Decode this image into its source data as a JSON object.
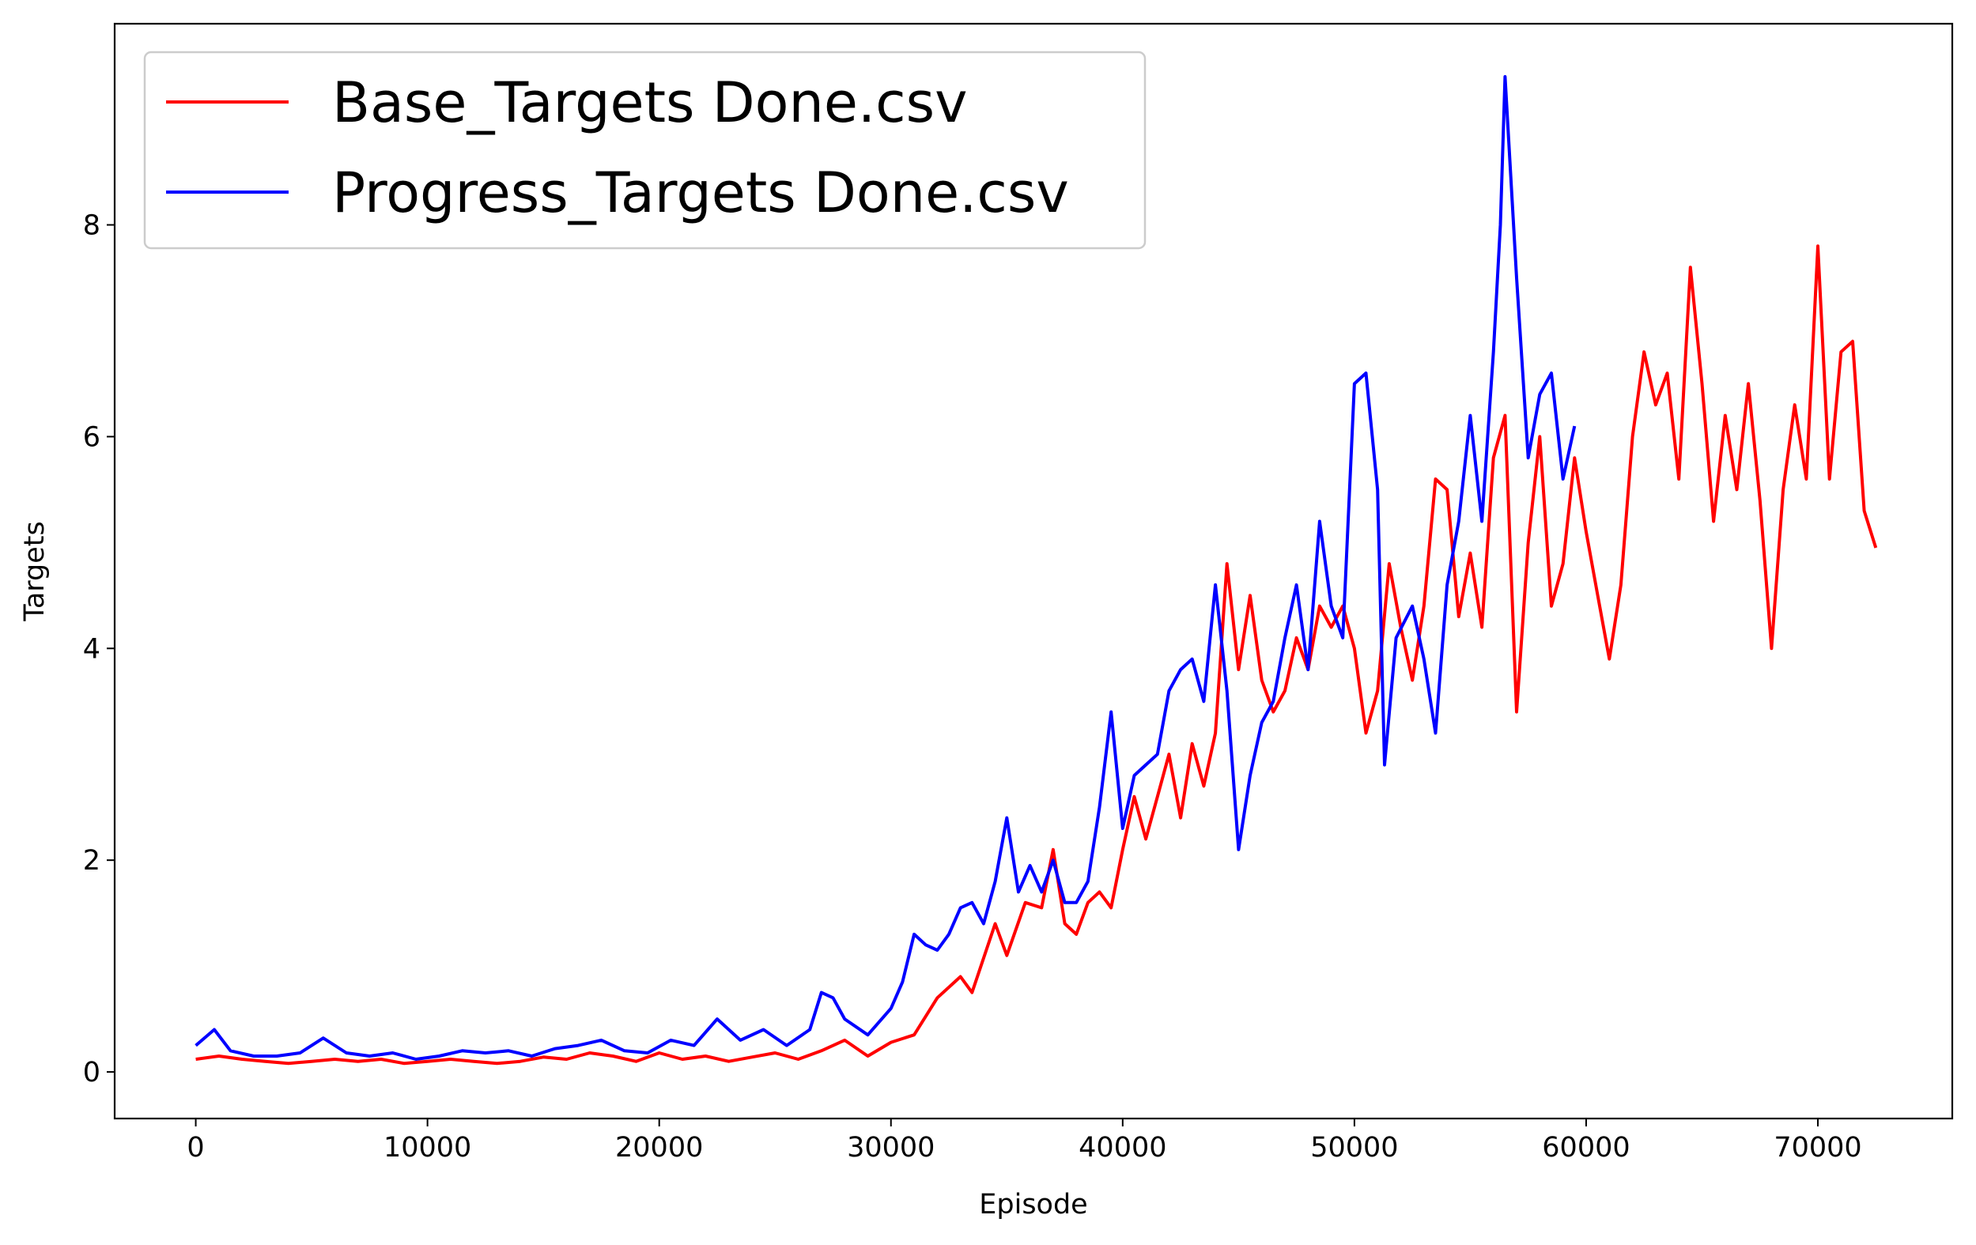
{
  "chart_data": {
    "type": "line",
    "xlabel": "Episode",
    "ylabel": "Targets",
    "xlim": [
      -3500,
      75800
    ],
    "ylim": [
      -0.44,
      9.9
    ],
    "xticks": [
      0,
      10000,
      20000,
      30000,
      40000,
      50000,
      60000,
      70000
    ],
    "yticks": [
      0,
      2,
      4,
      6,
      8
    ],
    "grid": false,
    "legend_position": "top-left",
    "series": [
      {
        "name": "Base_Targets Done.csv",
        "color": "#ff0000",
        "points": [
          [
            0,
            0.12
          ],
          [
            1000,
            0.15
          ],
          [
            2000,
            0.12
          ],
          [
            3000,
            0.1
          ],
          [
            4000,
            0.08
          ],
          [
            5000,
            0.1
          ],
          [
            6000,
            0.12
          ],
          [
            7000,
            0.1
          ],
          [
            8000,
            0.12
          ],
          [
            9000,
            0.08
          ],
          [
            10000,
            0.1
          ],
          [
            11000,
            0.12
          ],
          [
            12000,
            0.1
          ],
          [
            13000,
            0.08
          ],
          [
            14000,
            0.1
          ],
          [
            15000,
            0.14
          ],
          [
            16000,
            0.12
          ],
          [
            17000,
            0.18
          ],
          [
            18000,
            0.15
          ],
          [
            19000,
            0.1
          ],
          [
            20000,
            0.18
          ],
          [
            21000,
            0.12
          ],
          [
            22000,
            0.15
          ],
          [
            23000,
            0.1
          ],
          [
            24000,
            0.14
          ],
          [
            25000,
            0.18
          ],
          [
            26000,
            0.12
          ],
          [
            27000,
            0.2
          ],
          [
            28000,
            0.3
          ],
          [
            29000,
            0.15
          ],
          [
            30000,
            0.28
          ],
          [
            31000,
            0.35
          ],
          [
            32000,
            0.7
          ],
          [
            33000,
            0.9
          ],
          [
            33500,
            0.75
          ],
          [
            34500,
            1.4
          ],
          [
            35000,
            1.1
          ],
          [
            35800,
            1.6
          ],
          [
            36500,
            1.55
          ],
          [
            37000,
            2.1
          ],
          [
            37500,
            1.4
          ],
          [
            38000,
            1.3
          ],
          [
            38500,
            1.6
          ],
          [
            39000,
            1.7
          ],
          [
            39500,
            1.55
          ],
          [
            40000,
            2.1
          ],
          [
            40500,
            2.6
          ],
          [
            41000,
            2.2
          ],
          [
            41500,
            2.6
          ],
          [
            42000,
            3.0
          ],
          [
            42500,
            2.4
          ],
          [
            43000,
            3.1
          ],
          [
            43500,
            2.7
          ],
          [
            44000,
            3.2
          ],
          [
            44500,
            4.8
          ],
          [
            45000,
            3.8
          ],
          [
            45500,
            4.5
          ],
          [
            46000,
            3.7
          ],
          [
            46500,
            3.4
          ],
          [
            47000,
            3.6
          ],
          [
            47500,
            4.1
          ],
          [
            48000,
            3.8
          ],
          [
            48500,
            4.4
          ],
          [
            49000,
            4.2
          ],
          [
            49500,
            4.4
          ],
          [
            50000,
            4.0
          ],
          [
            50500,
            3.2
          ],
          [
            51000,
            3.6
          ],
          [
            51500,
            4.8
          ],
          [
            52000,
            4.2
          ],
          [
            52500,
            3.7
          ],
          [
            53000,
            4.4
          ],
          [
            53500,
            5.6
          ],
          [
            54000,
            5.5
          ],
          [
            54500,
            4.3
          ],
          [
            55000,
            4.9
          ],
          [
            55500,
            4.2
          ],
          [
            56000,
            5.8
          ],
          [
            56500,
            6.2
          ],
          [
            57000,
            3.4
          ],
          [
            57500,
            5.0
          ],
          [
            58000,
            6.0
          ],
          [
            58500,
            4.4
          ],
          [
            59000,
            4.8
          ],
          [
            59500,
            5.8
          ],
          [
            60000,
            5.1
          ],
          [
            60500,
            4.5
          ],
          [
            61000,
            3.9
          ],
          [
            61500,
            4.6
          ],
          [
            62000,
            6.0
          ],
          [
            62500,
            6.8
          ],
          [
            63000,
            6.3
          ],
          [
            63500,
            6.6
          ],
          [
            64000,
            5.6
          ],
          [
            64500,
            7.6
          ],
          [
            65000,
            6.5
          ],
          [
            65500,
            5.2
          ],
          [
            66000,
            6.2
          ],
          [
            66500,
            5.5
          ],
          [
            67000,
            6.5
          ],
          [
            67500,
            5.4
          ],
          [
            68000,
            4.0
          ],
          [
            68500,
            5.5
          ],
          [
            69000,
            6.3
          ],
          [
            69500,
            5.6
          ],
          [
            70000,
            7.8
          ],
          [
            70500,
            5.6
          ],
          [
            71000,
            6.8
          ],
          [
            71500,
            6.9
          ],
          [
            72000,
            5.3
          ],
          [
            72500,
            4.95
          ]
        ]
      },
      {
        "name": "Progress_Targets Done.csv",
        "color": "#0000ff",
        "points": [
          [
            0,
            0.25
          ],
          [
            800,
            0.4
          ],
          [
            1500,
            0.2
          ],
          [
            2500,
            0.15
          ],
          [
            3500,
            0.15
          ],
          [
            4500,
            0.18
          ],
          [
            5500,
            0.32
          ],
          [
            6500,
            0.18
          ],
          [
            7500,
            0.15
          ],
          [
            8500,
            0.18
          ],
          [
            9500,
            0.12
          ],
          [
            10500,
            0.15
          ],
          [
            11500,
            0.2
          ],
          [
            12500,
            0.18
          ],
          [
            13500,
            0.2
          ],
          [
            14500,
            0.15
          ],
          [
            15500,
            0.22
          ],
          [
            16500,
            0.25
          ],
          [
            17500,
            0.3
          ],
          [
            18500,
            0.2
          ],
          [
            19500,
            0.18
          ],
          [
            20500,
            0.3
          ],
          [
            21500,
            0.25
          ],
          [
            22500,
            0.5
          ],
          [
            23500,
            0.3
          ],
          [
            24500,
            0.4
          ],
          [
            25500,
            0.25
          ],
          [
            26500,
            0.4
          ],
          [
            27000,
            0.75
          ],
          [
            27500,
            0.7
          ],
          [
            28000,
            0.5
          ],
          [
            29000,
            0.35
          ],
          [
            30000,
            0.6
          ],
          [
            30500,
            0.85
          ],
          [
            31000,
            1.3
          ],
          [
            31500,
            1.2
          ],
          [
            32000,
            1.15
          ],
          [
            32500,
            1.3
          ],
          [
            33000,
            1.55
          ],
          [
            33500,
            1.6
          ],
          [
            34000,
            1.4
          ],
          [
            34500,
            1.8
          ],
          [
            35000,
            2.4
          ],
          [
            35500,
            1.7
          ],
          [
            36000,
            1.95
          ],
          [
            36500,
            1.7
          ],
          [
            37000,
            2.0
          ],
          [
            37500,
            1.6
          ],
          [
            38000,
            1.6
          ],
          [
            38500,
            1.8
          ],
          [
            39000,
            2.5
          ],
          [
            39500,
            3.4
          ],
          [
            40000,
            2.3
          ],
          [
            40500,
            2.8
          ],
          [
            41000,
            2.9
          ],
          [
            41500,
            3.0
          ],
          [
            42000,
            3.6
          ],
          [
            42500,
            3.8
          ],
          [
            43000,
            3.9
          ],
          [
            43500,
            3.5
          ],
          [
            44000,
            4.6
          ],
          [
            44500,
            3.6
          ],
          [
            45000,
            2.1
          ],
          [
            45500,
            2.8
          ],
          [
            46000,
            3.3
          ],
          [
            46500,
            3.5
          ],
          [
            47000,
            4.1
          ],
          [
            47500,
            4.6
          ],
          [
            48000,
            3.8
          ],
          [
            48500,
            5.2
          ],
          [
            49000,
            4.4
          ],
          [
            49500,
            4.1
          ],
          [
            50000,
            6.5
          ],
          [
            50500,
            6.6
          ],
          [
            51000,
            5.5
          ],
          [
            51300,
            2.9
          ],
          [
            51800,
            4.1
          ],
          [
            52500,
            4.4
          ],
          [
            53000,
            3.9
          ],
          [
            53500,
            3.2
          ],
          [
            54000,
            4.6
          ],
          [
            54500,
            5.2
          ],
          [
            55000,
            6.2
          ],
          [
            55500,
            5.2
          ],
          [
            56000,
            6.8
          ],
          [
            56300,
            8.0
          ],
          [
            56500,
            9.4
          ],
          [
            57000,
            7.5
          ],
          [
            57500,
            5.8
          ],
          [
            58000,
            6.4
          ],
          [
            58500,
            6.6
          ],
          [
            59000,
            5.6
          ],
          [
            59500,
            6.1
          ]
        ]
      }
    ]
  }
}
